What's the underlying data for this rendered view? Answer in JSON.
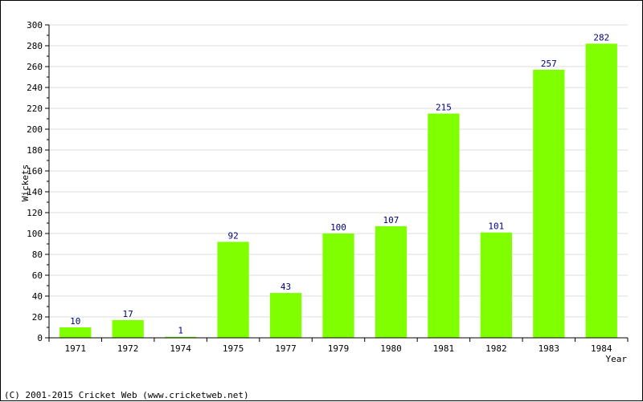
{
  "chart_data": {
    "type": "bar",
    "categories": [
      "1971",
      "1972",
      "1974",
      "1975",
      "1977",
      "1979",
      "1980",
      "1981",
      "1982",
      "1983",
      "1984"
    ],
    "values": [
      10,
      17,
      1,
      92,
      43,
      100,
      107,
      215,
      101,
      257,
      282
    ],
    "xlabel": "Year",
    "ylabel": "Wickets",
    "ylim": [
      0,
      300
    ],
    "ytick_step": 20,
    "grid": true,
    "data_labels": true,
    "colors": {
      "bar": "#7fff00",
      "value_label": "#000080",
      "grid": "#dddddd",
      "axis": "#000000"
    }
  },
  "footer": {
    "copyright": "(C) 2001-2015 Cricket Web (www.cricketweb.net)"
  }
}
